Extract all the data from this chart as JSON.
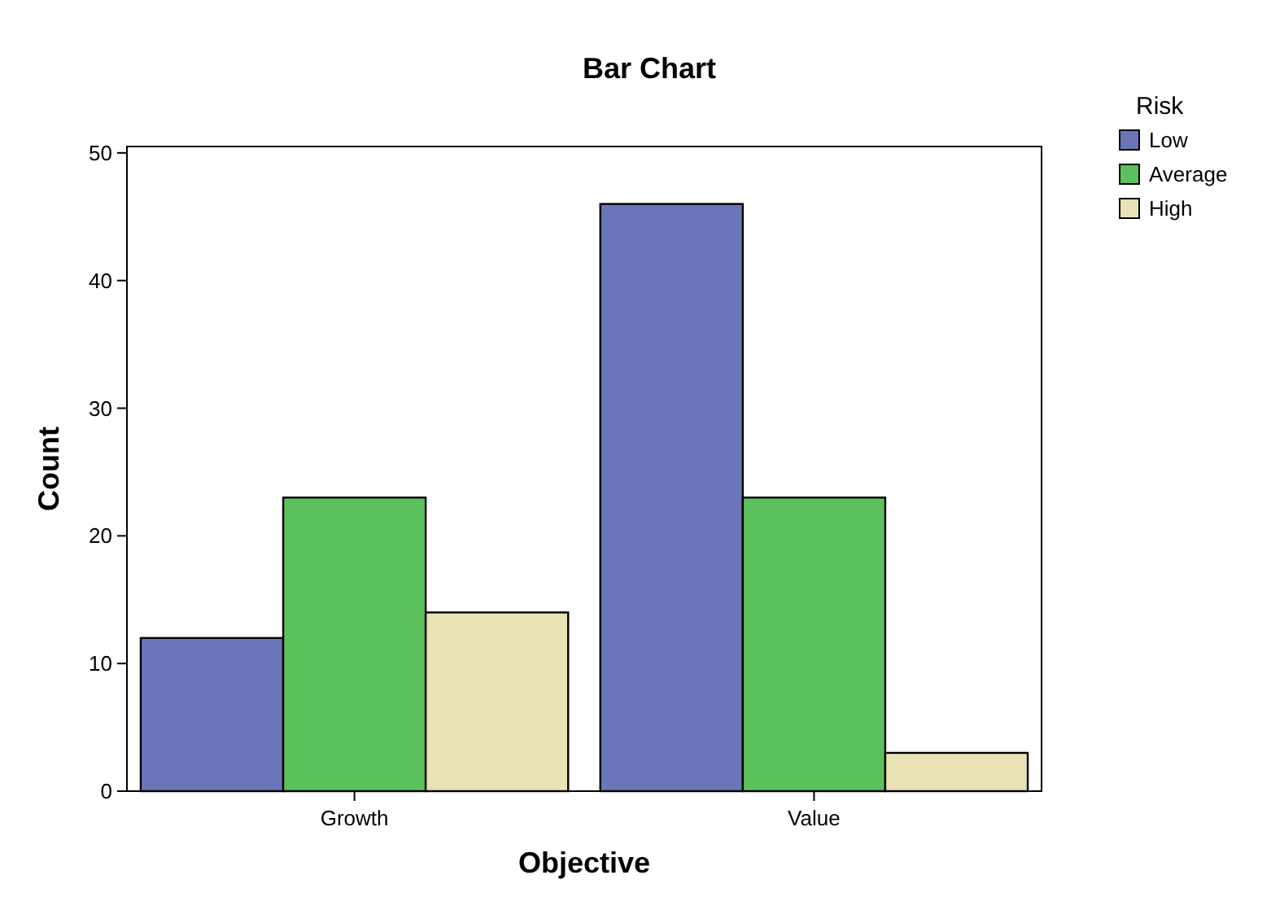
{
  "chart_data": {
    "type": "bar",
    "title": "Bar Chart",
    "xlabel": "Objective",
    "ylabel": "Count",
    "legend_title": "Risk",
    "categories": [
      "Growth",
      "Value"
    ],
    "series": [
      {
        "name": "Low",
        "color": "#6b76b8",
        "values": [
          12,
          46
        ]
      },
      {
        "name": "Average",
        "color": "#5cc05c",
        "values": [
          23,
          23
        ]
      },
      {
        "name": "High",
        "color": "#e8e2b4",
        "values": [
          14,
          3
        ]
      }
    ],
    "ylim": [
      0,
      50.5
    ],
    "yticks": [
      0,
      10,
      20,
      30,
      40,
      50
    ],
    "grid": false,
    "legend": "right"
  }
}
